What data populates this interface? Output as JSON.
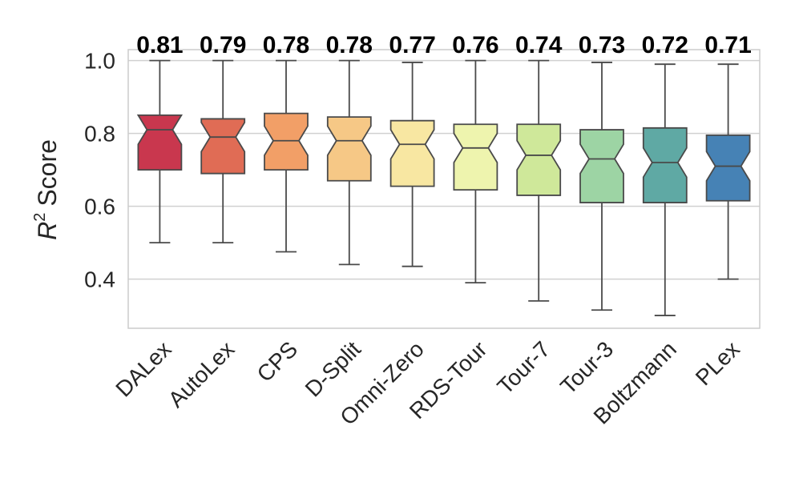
{
  "chart_data": {
    "type": "boxplot",
    "title": "",
    "xlabel": "",
    "ylabel": "Score",
    "ylabel_symbol": "R",
    "ylabel_superscript": "2",
    "ylim": [
      0.265,
      1.03
    ],
    "yticks": [
      {
        "value": 0.4,
        "label": "0.4"
      },
      {
        "value": 0.6,
        "label": "0.6"
      },
      {
        "value": 0.8,
        "label": "0.8"
      },
      {
        "value": 1.0,
        "label": "1.0"
      }
    ],
    "grid": true,
    "categories": [
      "DALex",
      "AutoLex",
      "CPS",
      "D-Split",
      "Omni-Zero",
      "RDS-Tour",
      "Tour-7",
      "Tour-3",
      "Boltzmann",
      "PLex"
    ],
    "median_labels": [
      "0.81",
      "0.79",
      "0.78",
      "0.78",
      "0.77",
      "0.76",
      "0.74",
      "0.73",
      "0.72",
      "0.71"
    ],
    "boxes": [
      {
        "name": "DALex",
        "whislo": 0.5,
        "q1": 0.7,
        "med": 0.81,
        "q3": 0.85,
        "whishi": 1.0,
        "color": "#c9374e"
      },
      {
        "name": "AutoLex",
        "whislo": 0.5,
        "q1": 0.69,
        "med": 0.79,
        "q3": 0.84,
        "whishi": 1.0,
        "color": "#e06c55"
      },
      {
        "name": "CPS",
        "whislo": 0.475,
        "q1": 0.7,
        "med": 0.78,
        "q3": 0.855,
        "whishi": 1.0,
        "color": "#f29f67"
      },
      {
        "name": "D-Split",
        "whislo": 0.44,
        "q1": 0.67,
        "med": 0.78,
        "q3": 0.845,
        "whishi": 1.0,
        "color": "#f6c886"
      },
      {
        "name": "Omni-Zero",
        "whislo": 0.435,
        "q1": 0.655,
        "med": 0.77,
        "q3": 0.835,
        "whishi": 0.995,
        "color": "#f8e7a2"
      },
      {
        "name": "RDS-Tour",
        "whislo": 0.39,
        "q1": 0.645,
        "med": 0.76,
        "q3": 0.825,
        "whishi": 1.0,
        "color": "#eef4ae"
      },
      {
        "name": "Tour-7",
        "whislo": 0.34,
        "q1": 0.63,
        "med": 0.74,
        "q3": 0.825,
        "whishi": 1.0,
        "color": "#cfe89a"
      },
      {
        "name": "Tour-3",
        "whislo": 0.315,
        "q1": 0.61,
        "med": 0.73,
        "q3": 0.81,
        "whishi": 0.995,
        "color": "#9dd4a4"
      },
      {
        "name": "Boltzmann",
        "whislo": 0.3,
        "q1": 0.61,
        "med": 0.72,
        "q3": 0.815,
        "whishi": 0.99,
        "color": "#5fa9a4"
      },
      {
        "name": "PLex",
        "whislo": 0.4,
        "q1": 0.615,
        "med": 0.71,
        "q3": 0.795,
        "whishi": 0.99,
        "color": "#4682b5"
      }
    ]
  }
}
